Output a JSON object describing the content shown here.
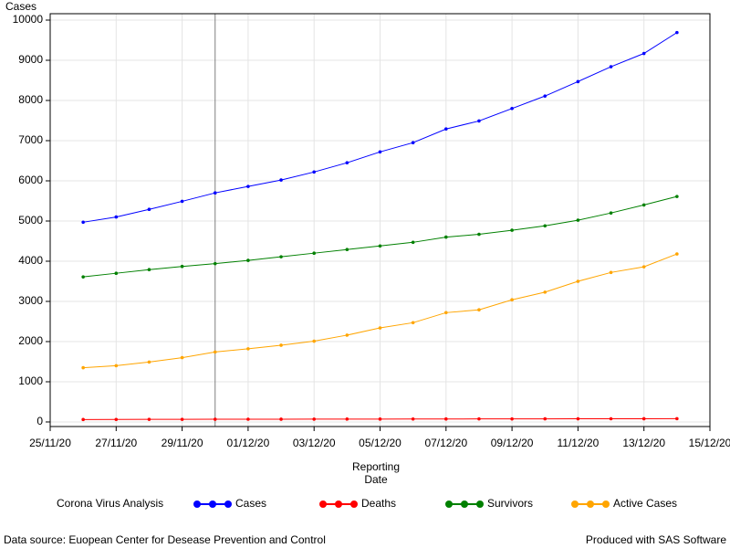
{
  "chart_data": {
    "type": "line",
    "y_label": "Cases",
    "x_label": "Reporting Date",
    "legend_title": "Corona Virus Analysis",
    "footnote_left": "Data source: Euopean Center for Desease Prevention and Control",
    "footnote_right": "Produced with SAS Software",
    "x": [
      "26/11/20",
      "27/11/20",
      "28/11/20",
      "29/11/20",
      "30/11/20",
      "01/12/20",
      "02/12/20",
      "03/12/20",
      "04/12/20",
      "05/12/20",
      "06/12/20",
      "07/12/20",
      "08/12/20",
      "09/12/20",
      "10/12/20",
      "11/12/20",
      "12/12/20",
      "13/12/20",
      "14/12/20"
    ],
    "series": [
      {
        "name": "Cases",
        "color": "#0000ff",
        "values": [
          4970,
          5100,
          5290,
          5490,
          5700,
          5860,
          6020,
          6220,
          6450,
          6720,
          6950,
          7290,
          7490,
          7800,
          8110,
          8470,
          8840,
          9170,
          9690
        ]
      },
      {
        "name": "Deaths",
        "color": "#ff0000",
        "values": [
          60,
          62,
          64,
          65,
          67,
          68,
          69,
          70,
          71,
          72,
          73,
          74,
          75,
          76,
          77,
          78,
          79,
          80,
          82
        ]
      },
      {
        "name": "Survivors",
        "color": "#008000",
        "values": [
          3610,
          3700,
          3790,
          3870,
          3940,
          4020,
          4110,
          4200,
          4290,
          4380,
          4470,
          4600,
          4670,
          4770,
          4880,
          5020,
          5200,
          5400,
          5610
        ]
      },
      {
        "name": "Active Cases",
        "color": "#ffa500",
        "values": [
          1350,
          1400,
          1490,
          1600,
          1740,
          1820,
          1910,
          2010,
          2160,
          2340,
          2470,
          2720,
          2790,
          3040,
          3230,
          3500,
          3720,
          3860,
          4180
        ]
      }
    ],
    "xlim": [
      "25/11/20",
      "15/12/20"
    ],
    "xticks": [
      "25/11/20",
      "27/11/20",
      "29/11/20",
      "01/12/20",
      "03/12/20",
      "05/12/20",
      "07/12/20",
      "09/12/20",
      "11/12/20",
      "13/12/20",
      "15/12/20"
    ],
    "ylim": [
      -114,
      10159
    ],
    "yticks": [
      0,
      1000,
      2000,
      3000,
      4000,
      5000,
      6000,
      7000,
      8000,
      9000,
      10000
    ],
    "reference_lines_x": [
      "30/11/20"
    ],
    "grid": true
  }
}
